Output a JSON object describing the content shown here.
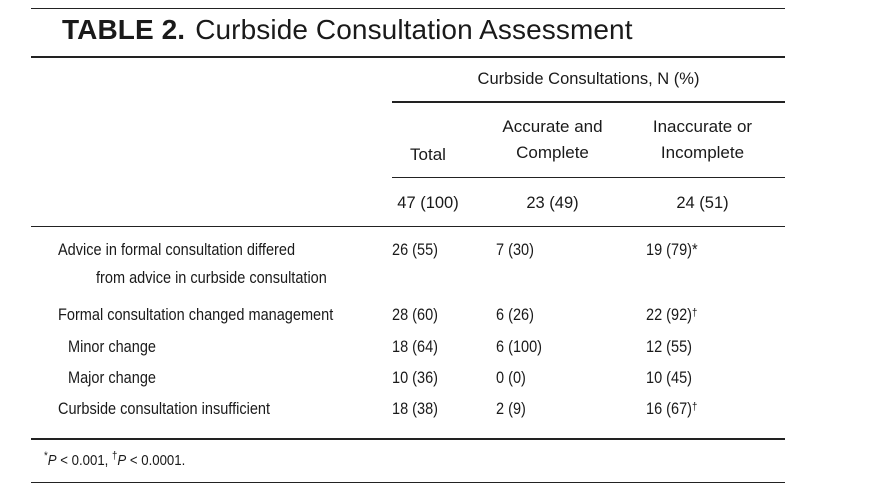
{
  "table": {
    "label": "TABLE 2.",
    "title": "Curbside Consultation Assessment",
    "spanner": "Curbside Consultations, N (%)",
    "columns": {
      "total": "Total",
      "accurate_line1": "Accurate and",
      "accurate_line2": "Complete",
      "inaccurate_line1": "Inaccurate or",
      "inaccurate_line2": "Incomplete"
    },
    "counts": {
      "total": "47 (100)",
      "accurate": "23 (49)",
      "inaccurate": "24 (51)"
    },
    "rows": [
      {
        "label_line1": "Advice in formal consultation differed",
        "label_line2": "from advice in curbside consultation",
        "total": "26 (55)",
        "accurate": "7 (30)",
        "inaccurate": "19 (79)",
        "mark": "*"
      },
      {
        "label_line1": "Formal consultation changed management",
        "total": "28 (60)",
        "accurate": "6 (26)",
        "inaccurate": "22 (92)",
        "mark": "†"
      },
      {
        "label_line1": "Minor change",
        "total": "18 (64)",
        "accurate": "6 (100)",
        "inaccurate": "12 (55)",
        "mark": ""
      },
      {
        "label_line1": "Major change",
        "total": "10 (36)",
        "accurate": "0 (0)",
        "inaccurate": "10 (45)",
        "mark": ""
      },
      {
        "label_line1": "Curbside consultation insufficient",
        "total": "18 (38)",
        "accurate": "2 (9)",
        "inaccurate": "16 (67)",
        "mark": "†"
      }
    ],
    "footnote": {
      "mark1": "*",
      "p_symbol": "P",
      "text1": " < 0.001, ",
      "mark2": "†",
      "text2": " < 0.0001."
    }
  }
}
